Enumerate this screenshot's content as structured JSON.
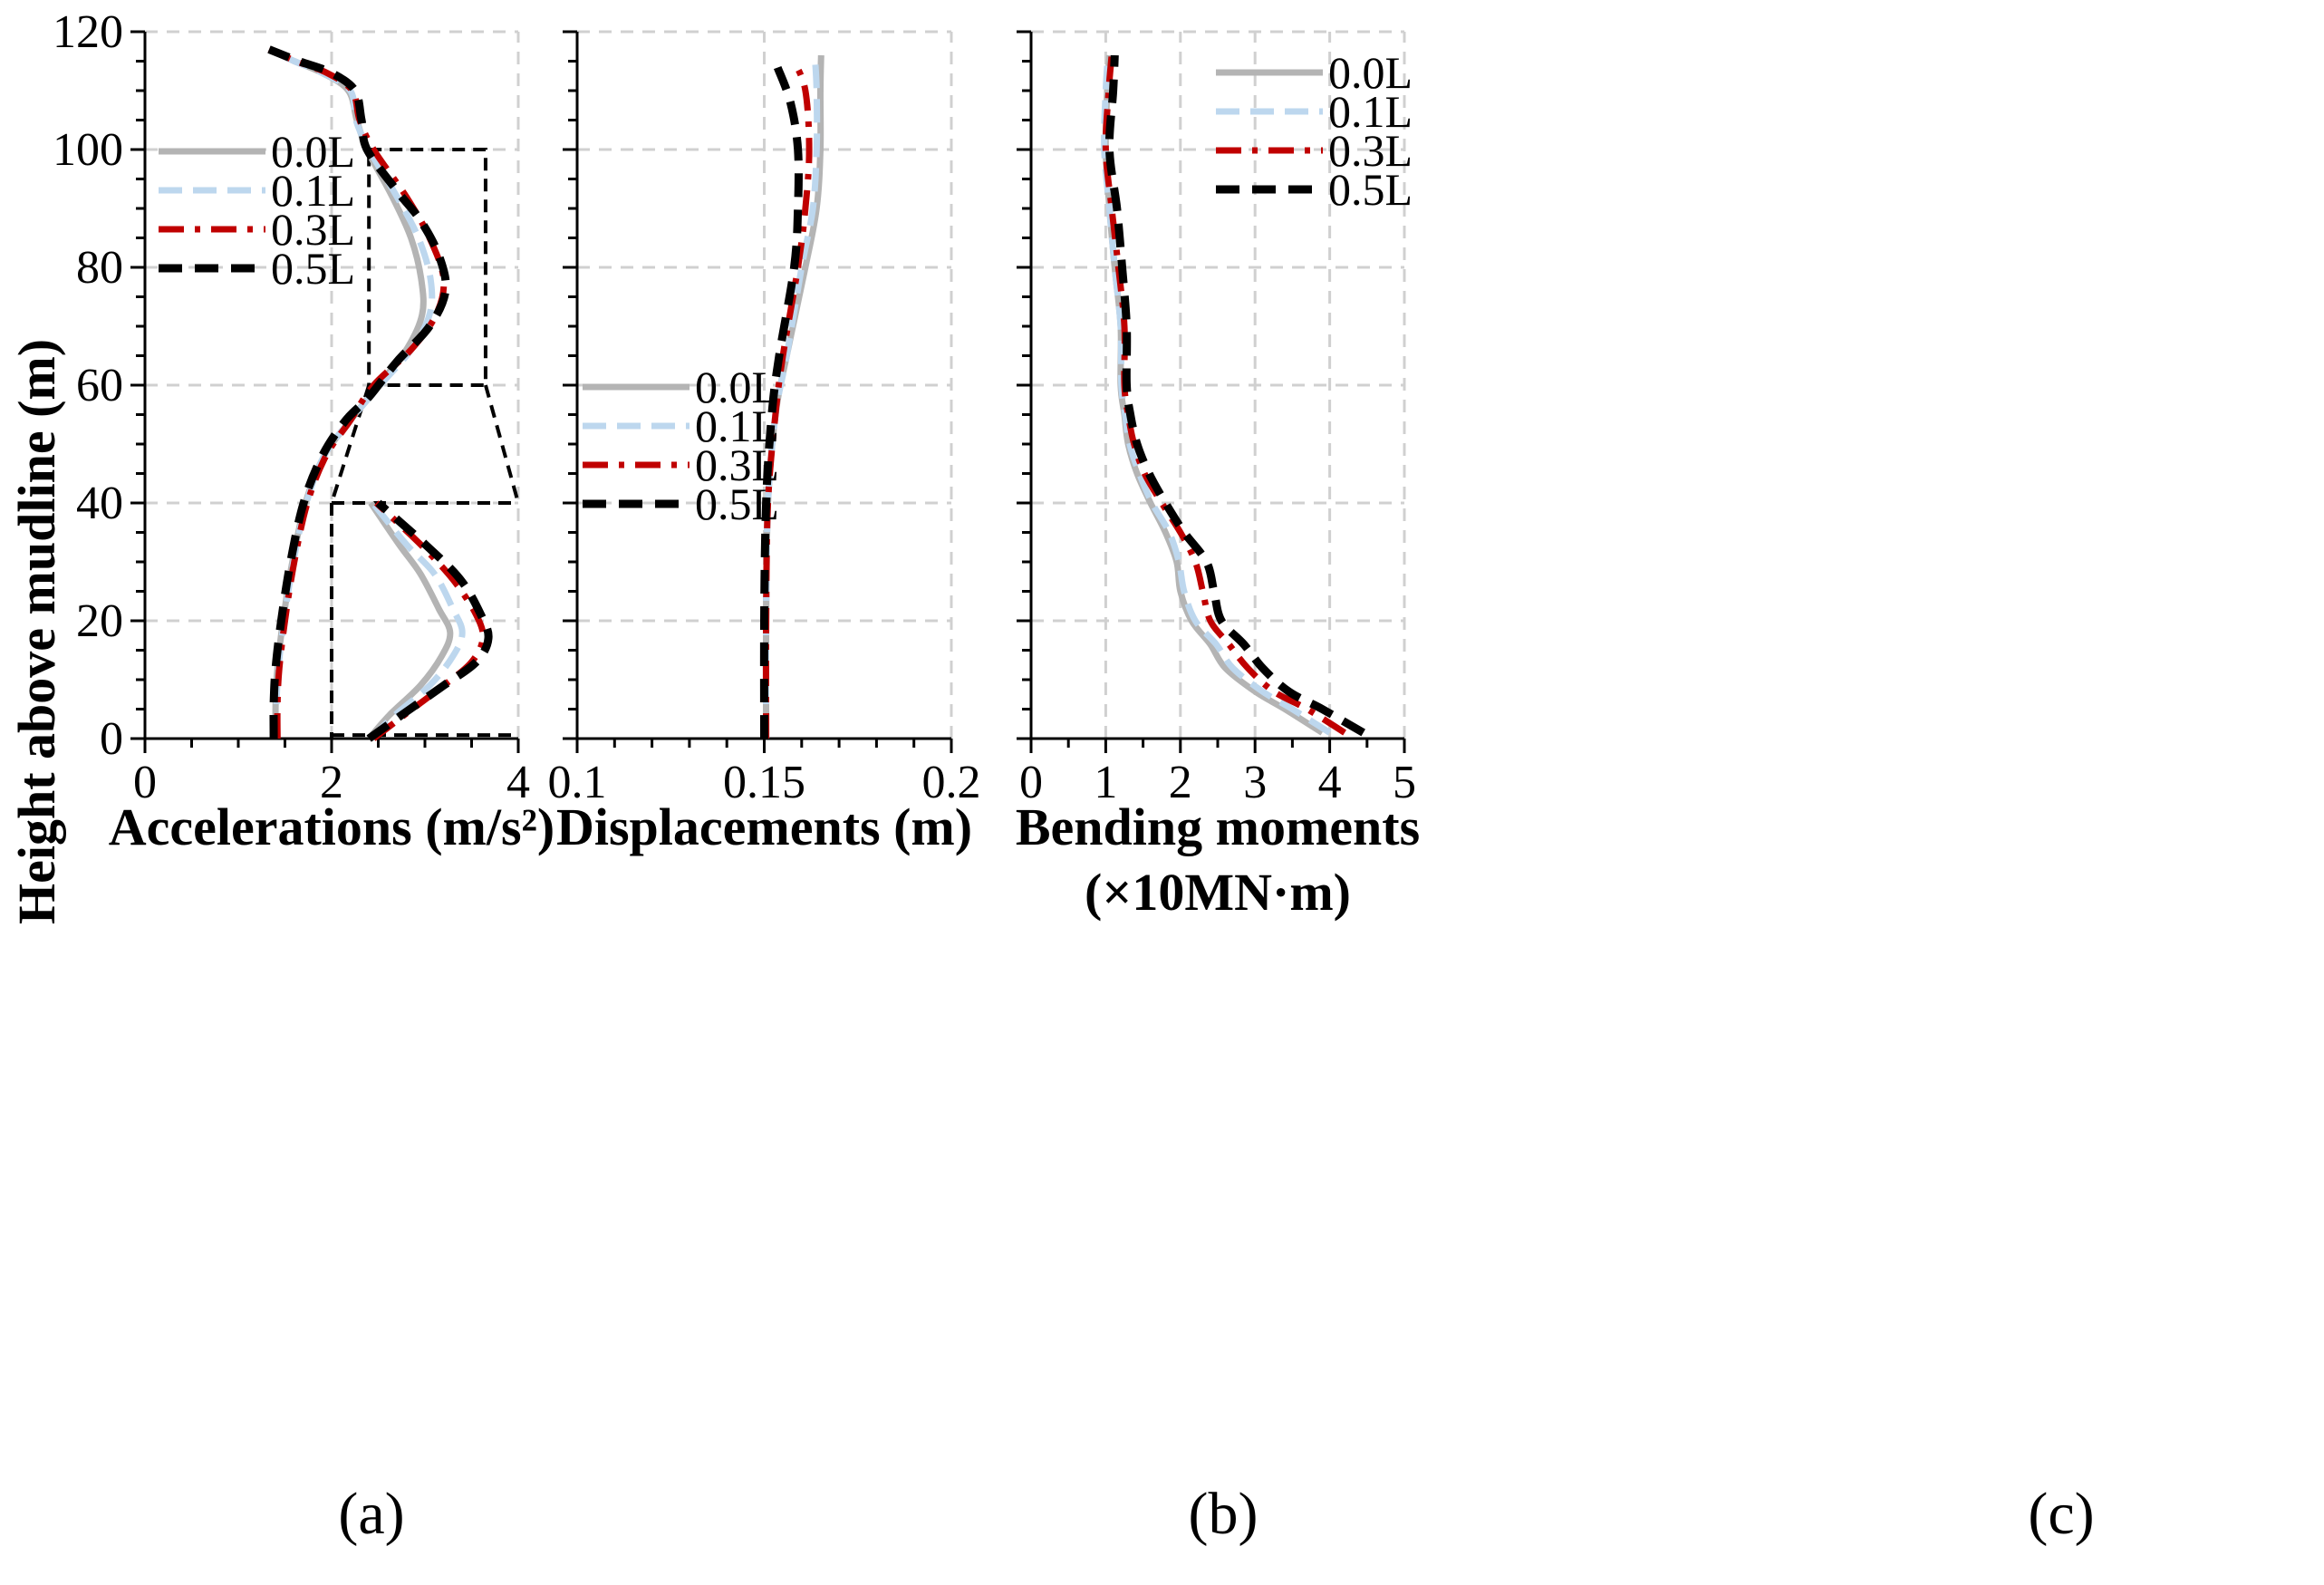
{
  "colors": {
    "0.0L": "#b4b4b4",
    "0.1L": "#bdd7ee",
    "0.3L": "#c00000",
    "0.5L": "#000000",
    "grid": "#d0d0d0",
    "axis": "#000000"
  },
  "y_title": "Height  above  mudline  (m)",
  "panel_labels": [
    "(a)",
    "(b)",
    "(c)"
  ],
  "chart_data": [
    {
      "type": "line",
      "title": "",
      "xlabel": "Accelerations (m/s²)",
      "xlabel2": "",
      "ylabel": "Height  above  mudline  (m)",
      "xlim": [
        0,
        4
      ],
      "ylim": [
        0,
        120
      ],
      "x_ticks": [
        0,
        2,
        4
      ],
      "x_tick_labels": [
        "0",
        "2",
        "4"
      ],
      "y_ticks": [
        0,
        20,
        40,
        60,
        80,
        100,
        120
      ],
      "y_tick_labels": [
        "0",
        "20",
        "40",
        "60",
        "80",
        "100",
        "120"
      ],
      "legend": [
        "0.0L",
        "0.1L",
        "0.3L",
        "0.5L"
      ],
      "legend_position": "upper-left",
      "series": [
        {
          "name": "0.0L",
          "points": [
            [
              1.4,
              0
            ],
            [
              1.4,
              6
            ],
            [
              1.42,
              12
            ],
            [
              1.48,
              20
            ],
            [
              1.58,
              30
            ],
            [
              1.72,
              40
            ],
            [
              1.92,
              48
            ],
            [
              2.2,
              54
            ],
            [
              2.5,
              60
            ],
            [
              2.8,
              66
            ],
            [
              2.97,
              72
            ],
            [
              2.96,
              78
            ],
            [
              2.85,
              85
            ],
            [
              2.65,
              92
            ],
            [
              2.38,
              100
            ],
            [
              2.27,
              105
            ],
            [
              2.18,
              110
            ],
            [
              1.9,
              113
            ],
            [
              1.6,
              115
            ],
            [
              1.33,
              117
            ]
          ]
        },
        {
          "name": "0.1L",
          "points": [
            [
              1.41,
              0
            ],
            [
              1.41,
              6
            ],
            [
              1.43,
              12
            ],
            [
              1.49,
              20
            ],
            [
              1.59,
              30
            ],
            [
              1.73,
              40
            ],
            [
              1.92,
              48
            ],
            [
              2.2,
              54
            ],
            [
              2.52,
              60
            ],
            [
              2.85,
              66
            ],
            [
              3.05,
              72
            ],
            [
              3.06,
              78
            ],
            [
              2.93,
              85
            ],
            [
              2.7,
              92
            ],
            [
              2.4,
              100
            ],
            [
              2.26,
              105
            ],
            [
              2.2,
              110
            ],
            [
              1.9,
              113
            ],
            [
              1.6,
              115
            ],
            [
              1.33,
              117
            ]
          ]
        },
        {
          "name": "0.3L",
          "points": [
            [
              1.42,
              0
            ],
            [
              1.42,
              6
            ],
            [
              1.44,
              12
            ],
            [
              1.5,
              20
            ],
            [
              1.6,
              30
            ],
            [
              1.74,
              40
            ],
            [
              1.94,
              48
            ],
            [
              2.2,
              54
            ],
            [
              2.45,
              60
            ],
            [
              2.85,
              66
            ],
            [
              3.12,
              72
            ],
            [
              3.2,
              78
            ],
            [
              3.05,
              85
            ],
            [
              2.8,
              92
            ],
            [
              2.45,
              100
            ],
            [
              2.3,
              105
            ],
            [
              2.22,
              110
            ],
            [
              1.95,
              113
            ],
            [
              1.62,
              115
            ],
            [
              1.33,
              117
            ]
          ]
        },
        {
          "name": "0.5L",
          "points": [
            [
              1.38,
              0
            ],
            [
              1.38,
              6
            ],
            [
              1.4,
              12
            ],
            [
              1.46,
              20
            ],
            [
              1.56,
              30
            ],
            [
              1.7,
              40
            ],
            [
              1.9,
              48
            ],
            [
              2.15,
              54
            ],
            [
              2.4,
              58
            ],
            [
              2.7,
              64
            ],
            [
              3.05,
              70
            ],
            [
              3.22,
              76
            ],
            [
              3.15,
              82
            ],
            [
              2.95,
              88
            ],
            [
              2.7,
              93
            ],
            [
              2.38,
              100
            ],
            [
              2.32,
              105
            ],
            [
              2.25,
              110
            ],
            [
              2.0,
              113
            ],
            [
              1.65,
              115
            ],
            [
              1.33,
              117
            ]
          ]
        }
      ],
      "inset": {
        "description": "zoom of 0-40 m region",
        "x_range_data": [
          2,
          4
        ],
        "series": [
          {
            "name": "0.0L",
            "points": [
              [
                2.4,
                0
              ],
              [
                2.62,
                4
              ],
              [
                2.95,
                9
              ],
              [
                3.18,
                14
              ],
              [
                3.27,
                18
              ],
              [
                3.15,
                22
              ],
              [
                2.95,
                28
              ],
              [
                2.72,
                33
              ],
              [
                2.42,
                40
              ]
            ]
          },
          {
            "name": "0.1L",
            "points": [
              [
                2.42,
                0
              ],
              [
                2.68,
                4
              ],
              [
                3.05,
                9
              ],
              [
                3.3,
                14
              ],
              [
                3.4,
                18
              ],
              [
                3.3,
                22
              ],
              [
                3.1,
                28
              ],
              [
                2.8,
                33
              ],
              [
                2.44,
                40
              ]
            ]
          },
          {
            "name": "0.3L",
            "points": [
              [
                2.45,
                0
              ],
              [
                2.78,
                4
              ],
              [
                3.2,
                9
              ],
              [
                3.5,
                13
              ],
              [
                3.62,
                17
              ],
              [
                3.55,
                21
              ],
              [
                3.3,
                27
              ],
              [
                2.95,
                33
              ],
              [
                2.48,
                40
              ]
            ]
          },
          {
            "name": "0.5L",
            "points": [
              [
                2.4,
                0
              ],
              [
                2.75,
                4
              ],
              [
                3.2,
                9
              ],
              [
                3.55,
                13
              ],
              [
                3.68,
                17
              ],
              [
                3.6,
                21
              ],
              [
                3.38,
                27
              ],
              [
                3.0,
                33
              ],
              [
                2.5,
                40
              ]
            ]
          }
        ]
      }
    },
    {
      "type": "line",
      "title": "",
      "xlabel": "Displacements  (m)",
      "xlabel2": "",
      "ylabel": "",
      "xlim": [
        0.1,
        0.2
      ],
      "ylim": [
        0,
        120
      ],
      "x_ticks": [
        0.1,
        0.15,
        0.2
      ],
      "x_tick_labels": [
        "0.1",
        "0.15",
        "0.2"
      ],
      "y_ticks": [
        0,
        20,
        40,
        60,
        80,
        100,
        120
      ],
      "legend": [
        "0.0L",
        "0.1L",
        "0.3L",
        "0.5L"
      ],
      "legend_position": "center-left",
      "series": [
        {
          "name": "0.0L",
          "points": [
            [
              0.1505,
              0
            ],
            [
              0.1505,
              20
            ],
            [
              0.151,
              40
            ],
            [
              0.153,
              55
            ],
            [
              0.156,
              65
            ],
            [
              0.161,
              80
            ],
            [
              0.164,
              90
            ],
            [
              0.165,
              100
            ],
            [
              0.165,
              110
            ],
            [
              0.1652,
              116
            ]
          ]
        },
        {
          "name": "0.1L",
          "points": [
            [
              0.1505,
              0
            ],
            [
              0.1505,
              20
            ],
            [
              0.151,
              40
            ],
            [
              0.153,
              55
            ],
            [
              0.156,
              65
            ],
            [
              0.16,
              80
            ],
            [
              0.163,
              90
            ],
            [
              0.164,
              100
            ],
            [
              0.164,
              110
            ],
            [
              0.1635,
              116
            ]
          ]
        },
        {
          "name": "0.3L",
          "points": [
            [
              0.1505,
              0
            ],
            [
              0.1505,
              20
            ],
            [
              0.151,
              40
            ],
            [
              0.153,
              55
            ],
            [
              0.155,
              65
            ],
            [
              0.159,
              80
            ],
            [
              0.161,
              90
            ],
            [
              0.162,
              100
            ],
            [
              0.161,
              110
            ],
            [
              0.158,
              115
            ]
          ]
        },
        {
          "name": "0.5L",
          "points": [
            [
              0.15,
              0
            ],
            [
              0.15,
              20
            ],
            [
              0.1505,
              40
            ],
            [
              0.152,
              55
            ],
            [
              0.154,
              65
            ],
            [
              0.158,
              80
            ],
            [
              0.159,
              90
            ],
            [
              0.159,
              100
            ],
            [
              0.157,
              108
            ],
            [
              0.1535,
              114
            ]
          ]
        }
      ]
    },
    {
      "type": "line",
      "title": "",
      "xlabel": "Bending  moments",
      "xlabel2": "(×10MN·m)",
      "ylabel": "",
      "xlim": [
        0,
        5
      ],
      "ylim": [
        0,
        120
      ],
      "x_ticks": [
        0,
        1,
        2,
        3,
        4,
        5
      ],
      "x_tick_labels": [
        "0",
        "1",
        "2",
        "3",
        "4",
        "5"
      ],
      "y_ticks": [
        0,
        20,
        40,
        60,
        80,
        100,
        120
      ],
      "legend": [
        "0.0L",
        "0.1L",
        "0.3L",
        "0.5L"
      ],
      "legend_position": "upper-right",
      "series": [
        {
          "name": "0.0L",
          "points": [
            [
              3.9,
              1
            ],
            [
              3.4,
              5
            ],
            [
              3.0,
              8
            ],
            [
              2.6,
              12
            ],
            [
              2.4,
              16
            ],
            [
              2.15,
              20
            ],
            [
              2.0,
              25
            ],
            [
              1.95,
              30
            ],
            [
              1.8,
              35
            ],
            [
              1.6,
              40
            ],
            [
              1.42,
              45
            ],
            [
              1.3,
              50
            ],
            [
              1.25,
              55
            ],
            [
              1.2,
              60
            ],
            [
              1.2,
              70
            ],
            [
              1.12,
              80
            ],
            [
              1.05,
              90
            ],
            [
              1.0,
              100
            ],
            [
              1.02,
              110
            ],
            [
              1.05,
              116
            ]
          ]
        },
        {
          "name": "0.1L",
          "points": [
            [
              4.0,
              1
            ],
            [
              3.5,
              5
            ],
            [
              3.1,
              8
            ],
            [
              2.7,
              12
            ],
            [
              2.48,
              16
            ],
            [
              2.2,
              20
            ],
            [
              2.05,
              25
            ],
            [
              1.98,
              30
            ],
            [
              1.85,
              35
            ],
            [
              1.62,
              40
            ],
            [
              1.45,
              45
            ],
            [
              1.32,
              50
            ],
            [
              1.26,
              55
            ],
            [
              1.21,
              60
            ],
            [
              1.2,
              70
            ],
            [
              1.12,
              80
            ],
            [
              1.05,
              90
            ],
            [
              0.98,
              100
            ],
            [
              1.0,
              110
            ],
            [
              1.03,
              116
            ]
          ]
        },
        {
          "name": "0.3L",
          "points": [
            [
              4.2,
              1
            ],
            [
              3.7,
              5
            ],
            [
              3.25,
              8
            ],
            [
              2.9,
              12
            ],
            [
              2.65,
              16
            ],
            [
              2.4,
              20
            ],
            [
              2.3,
              25
            ],
            [
              2.2,
              30
            ],
            [
              2.0,
              35
            ],
            [
              1.75,
              40
            ],
            [
              1.52,
              45
            ],
            [
              1.38,
              50
            ],
            [
              1.3,
              55
            ],
            [
              1.25,
              60
            ],
            [
              1.25,
              70
            ],
            [
              1.17,
              80
            ],
            [
              1.08,
              90
            ],
            [
              1.0,
              100
            ],
            [
              1.04,
              110
            ],
            [
              1.08,
              116
            ]
          ]
        },
        {
          "name": "0.5L",
          "points": [
            [
              4.45,
              1
            ],
            [
              3.9,
              5
            ],
            [
              3.45,
              8
            ],
            [
              3.1,
              12
            ],
            [
              2.85,
              16
            ],
            [
              2.55,
              20
            ],
            [
              2.45,
              25
            ],
            [
              2.35,
              30
            ],
            [
              2.05,
              35
            ],
            [
              1.8,
              40
            ],
            [
              1.58,
              45
            ],
            [
              1.42,
              50
            ],
            [
              1.33,
              55
            ],
            [
              1.28,
              60
            ],
            [
              1.28,
              70
            ],
            [
              1.22,
              80
            ],
            [
              1.15,
              90
            ],
            [
              1.05,
              100
            ],
            [
              1.1,
              110
            ],
            [
              1.12,
              116
            ]
          ]
        }
      ]
    }
  ]
}
